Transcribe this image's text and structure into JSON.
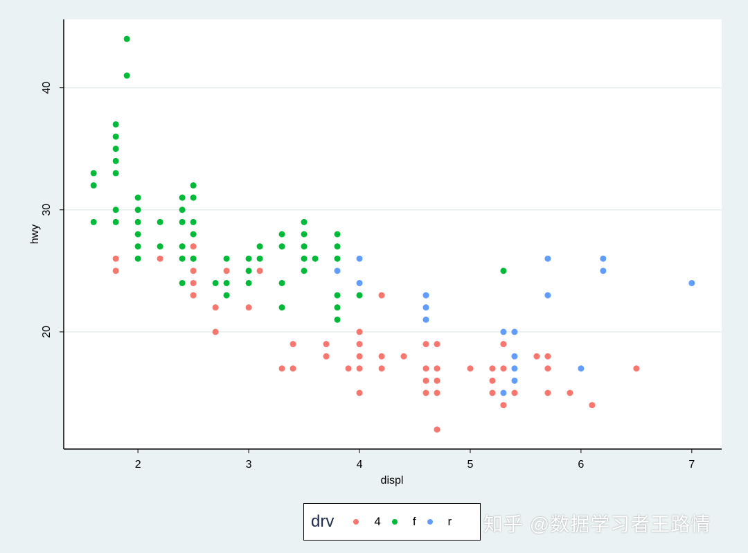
{
  "chart_data": {
    "type": "scatter",
    "xlabel": "displ",
    "ylabel": "hwy",
    "xlim": [
      1.33,
      7.27
    ],
    "ylim": [
      10.4,
      45.6
    ],
    "xticks": [
      2,
      3,
      4,
      5,
      6,
      7
    ],
    "yticks": [
      20,
      30,
      40
    ],
    "grid": "horizontal",
    "legend_title": "drv",
    "legend_placement": "bottom",
    "series": [
      {
        "name": "4",
        "color": "#F8766D",
        "points": [
          [
            1.8,
            26
          ],
          [
            1.8,
            25
          ],
          [
            2.2,
            26
          ],
          [
            2.5,
            27
          ],
          [
            2.5,
            26
          ],
          [
            2.5,
            25
          ],
          [
            2.5,
            24
          ],
          [
            2.5,
            23
          ],
          [
            2.7,
            22
          ],
          [
            2.7,
            20
          ],
          [
            2.8,
            25
          ],
          [
            3.0,
            22
          ],
          [
            3.1,
            25
          ],
          [
            3.3,
            17
          ],
          [
            3.4,
            19
          ],
          [
            3.4,
            17
          ],
          [
            3.7,
            19
          ],
          [
            3.7,
            18
          ],
          [
            3.9,
            17
          ],
          [
            4.0,
            20
          ],
          [
            4.0,
            19
          ],
          [
            4.0,
            18
          ],
          [
            4.0,
            17
          ],
          [
            4.0,
            15
          ],
          [
            4.2,
            23
          ],
          [
            4.2,
            18
          ],
          [
            4.2,
            17
          ],
          [
            4.4,
            18
          ],
          [
            4.6,
            19
          ],
          [
            4.6,
            17
          ],
          [
            4.6,
            16
          ],
          [
            4.6,
            15
          ],
          [
            4.7,
            19
          ],
          [
            4.7,
            17
          ],
          [
            4.7,
            16
          ],
          [
            4.7,
            15
          ],
          [
            4.7,
            12
          ],
          [
            5.0,
            17
          ],
          [
            5.2,
            17
          ],
          [
            5.2,
            16
          ],
          [
            5.2,
            15
          ],
          [
            5.3,
            19
          ],
          [
            5.3,
            17
          ],
          [
            5.3,
            14
          ],
          [
            5.4,
            15
          ],
          [
            5.6,
            18
          ],
          [
            5.7,
            18
          ],
          [
            5.7,
            17
          ],
          [
            5.7,
            15
          ],
          [
            5.9,
            15
          ],
          [
            6.1,
            14
          ],
          [
            6.5,
            17
          ]
        ]
      },
      {
        "name": "f",
        "color": "#00BA38",
        "points": [
          [
            1.6,
            33
          ],
          [
            1.6,
            32
          ],
          [
            1.6,
            29
          ],
          [
            1.8,
            37
          ],
          [
            1.8,
            36
          ],
          [
            1.8,
            35
          ],
          [
            1.8,
            34
          ],
          [
            1.8,
            33
          ],
          [
            1.8,
            30
          ],
          [
            1.8,
            29
          ],
          [
            1.9,
            44
          ],
          [
            1.9,
            41
          ],
          [
            2.0,
            31
          ],
          [
            2.0,
            30
          ],
          [
            2.0,
            29
          ],
          [
            2.0,
            28
          ],
          [
            2.0,
            27
          ],
          [
            2.0,
            26
          ],
          [
            2.2,
            29
          ],
          [
            2.2,
            27
          ],
          [
            2.4,
            31
          ],
          [
            2.4,
            30
          ],
          [
            2.4,
            29
          ],
          [
            2.4,
            27
          ],
          [
            2.4,
            26
          ],
          [
            2.4,
            24
          ],
          [
            2.5,
            32
          ],
          [
            2.5,
            31
          ],
          [
            2.5,
            29
          ],
          [
            2.5,
            28
          ],
          [
            2.5,
            26
          ],
          [
            2.7,
            24
          ],
          [
            2.8,
            26
          ],
          [
            2.8,
            24
          ],
          [
            2.8,
            23
          ],
          [
            3.0,
            26
          ],
          [
            3.0,
            25
          ],
          [
            3.0,
            24
          ],
          [
            3.1,
            27
          ],
          [
            3.1,
            26
          ],
          [
            3.3,
            28
          ],
          [
            3.3,
            27
          ],
          [
            3.3,
            24
          ],
          [
            3.3,
            22
          ],
          [
            3.5,
            29
          ],
          [
            3.5,
            28
          ],
          [
            3.5,
            27
          ],
          [
            3.5,
            26
          ],
          [
            3.5,
            25
          ],
          [
            3.6,
            26
          ],
          [
            3.8,
            28
          ],
          [
            3.8,
            27
          ],
          [
            3.8,
            26
          ],
          [
            3.8,
            23
          ],
          [
            3.8,
            22
          ],
          [
            3.8,
            21
          ],
          [
            4.0,
            23
          ],
          [
            5.3,
            25
          ]
        ]
      },
      {
        "name": "r",
        "color": "#619CFF",
        "points": [
          [
            3.8,
            25
          ],
          [
            4.0,
            26
          ],
          [
            4.0,
            24
          ],
          [
            4.6,
            23
          ],
          [
            4.6,
            22
          ],
          [
            4.6,
            21
          ],
          [
            5.3,
            20
          ],
          [
            5.3,
            15
          ],
          [
            5.4,
            20
          ],
          [
            5.4,
            18
          ],
          [
            5.4,
            17
          ],
          [
            5.4,
            16
          ],
          [
            5.7,
            26
          ],
          [
            5.7,
            23
          ],
          [
            6.0,
            17
          ],
          [
            6.2,
            26
          ],
          [
            6.2,
            25
          ],
          [
            7.0,
            24
          ]
        ]
      }
    ]
  },
  "watermark": "知乎 @数据学习者王路情"
}
